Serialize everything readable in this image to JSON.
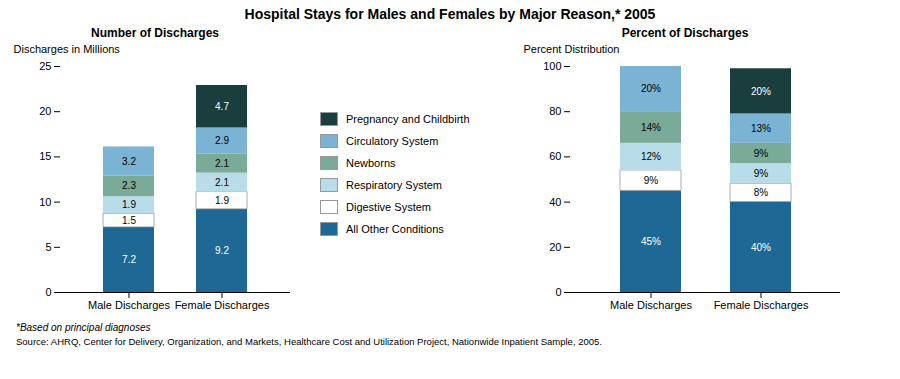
{
  "title": "Hospital Stays for Males and Females by Major Reason,* 2005",
  "annotations": [
    "*Based on principal diagnoses",
    "Source:  AHRQ, Center for Delivery, Organization, and Markets, Healthcare Cost and Utilization Project, Nationwide Inpatient Sample, 2005."
  ],
  "chart_data": [
    {
      "type": "bar",
      "stacked": true,
      "data_labels": true,
      "grid": false,
      "title": "Number of Discharges",
      "ylabel": "Discharges in Millions",
      "categories": [
        "Male Discharges",
        "Female Discharges"
      ],
      "ylim": [
        0,
        25
      ],
      "yticks": [
        0,
        5,
        10,
        15,
        20,
        25
      ],
      "series": [
        {
          "name": "All Other Conditions",
          "color": "#1e6896",
          "values": [
            7.2,
            9.2
          ],
          "value_labels": [
            "7.2",
            "9.2"
          ]
        },
        {
          "name": "Digestive System",
          "color": "#ffffff",
          "values": [
            1.5,
            1.9
          ],
          "value_labels": [
            "1.5",
            "1.9"
          ]
        },
        {
          "name": "Respiratory System",
          "color": "#b8dde8",
          "values": [
            1.9,
            2.1
          ],
          "value_labels": [
            "1.9",
            "2.1"
          ]
        },
        {
          "name": "Newborns",
          "color": "#7aaa98",
          "values": [
            2.3,
            2.1
          ],
          "value_labels": [
            "2.3",
            "2.1"
          ]
        },
        {
          "name": "Circulatory System",
          "color": "#7ab3d4",
          "values": [
            3.2,
            2.9
          ],
          "value_labels": [
            "3.2",
            "2.9"
          ]
        },
        {
          "name": "Pregnancy and Childbirth",
          "color": "#1a3d3d",
          "values": [
            0,
            4.7
          ],
          "value_labels": [
            null,
            "4.7"
          ]
        }
      ]
    },
    {
      "type": "bar",
      "stacked": true,
      "data_labels": true,
      "grid": false,
      "title": "Percent of Discharges",
      "ylabel": "Percent Distribution",
      "categories": [
        "Male Discharges",
        "Female Discharges"
      ],
      "ylim": [
        0,
        100
      ],
      "yticks": [
        0,
        20,
        40,
        60,
        80,
        100
      ],
      "series": [
        {
          "name": "All Other Conditions",
          "color": "#1e6896",
          "values": [
            45,
            40
          ],
          "value_labels": [
            "45%",
            "40%"
          ]
        },
        {
          "name": "Digestive System",
          "color": "#ffffff",
          "values": [
            9,
            8
          ],
          "value_labels": [
            "9%",
            "8%"
          ]
        },
        {
          "name": "Respiratory System",
          "color": "#b8dde8",
          "values": [
            12,
            9
          ],
          "value_labels": [
            "12%",
            "9%"
          ]
        },
        {
          "name": "Newborns",
          "color": "#7aaa98",
          "values": [
            14,
            9
          ],
          "value_labels": [
            "14%",
            "9%"
          ]
        },
        {
          "name": "Circulatory System",
          "color": "#7ab3d4",
          "values": [
            20,
            13
          ],
          "value_labels": [
            "20%",
            "13%"
          ]
        },
        {
          "name": "Pregnancy and Childbirth",
          "color": "#1a3d3d",
          "values": [
            0,
            20
          ],
          "value_labels": [
            null,
            "20%"
          ]
        }
      ]
    }
  ]
}
